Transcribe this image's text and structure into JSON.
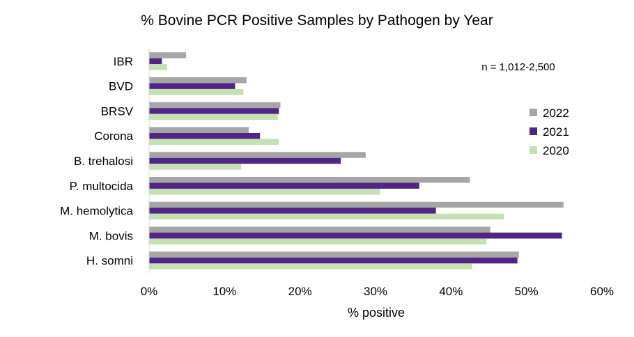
{
  "chart_data": {
    "type": "bar",
    "orientation": "horizontal",
    "title": "% Bovine PCR Positive Samples by Pathogen by Year",
    "xlabel": "% positive",
    "ylabel": "",
    "annotation": "n = 1,012-2,500",
    "xlim": [
      0,
      60
    ],
    "x_ticks": [
      "0%",
      "10%",
      "20%",
      "30%",
      "40%",
      "50%",
      "60%"
    ],
    "x_tick_values": [
      0,
      10,
      20,
      30,
      40,
      50,
      60
    ],
    "categories": [
      "IBR",
      "BVD",
      "BRSV",
      "Corona",
      "B. trehalosi",
      "P. multocida",
      "M. hemolytica",
      "M. bovis",
      "H. somni"
    ],
    "series": [
      {
        "name": "2022",
        "color": "#A6A6A6",
        "values": [
          4.9,
          12.9,
          17.4,
          13.2,
          28.7,
          42.5,
          54.9,
          45.2,
          49.0
        ]
      },
      {
        "name": "2021",
        "color": "#4F2683",
        "values": [
          1.7,
          11.4,
          17.2,
          14.7,
          25.4,
          35.8,
          38.0,
          54.7,
          48.8
        ]
      },
      {
        "name": "2020",
        "color": "#C6E0B4",
        "values": [
          2.4,
          12.5,
          17.1,
          17.2,
          12.2,
          30.6,
          47.0,
          44.7,
          42.8
        ]
      }
    ],
    "legend": [
      "2022",
      "2021",
      "2020"
    ],
    "legend_position": "right",
    "grid": false
  }
}
